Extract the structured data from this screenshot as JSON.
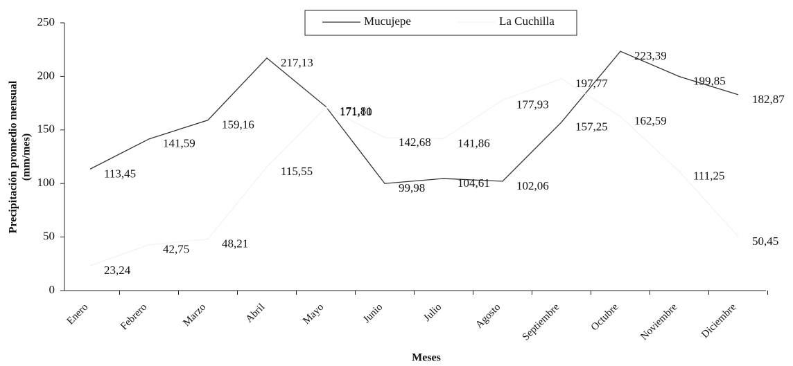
{
  "chart_data": {
    "type": "line",
    "xlabel": "Meses",
    "ylabel": [
      "Precipitación promedio mensual",
      "(mm/mes)"
    ],
    "categories": [
      "Enero",
      "Febrero",
      "Marzo",
      "Abril",
      "Mayo",
      "Junio",
      "Julio",
      "Agosto",
      "Septiembre",
      "Octubre",
      "Noviembre",
      "Diciembre"
    ],
    "series": [
      {
        "name": "Mucujepe",
        "color": "#333333",
        "values": [
          113.45,
          141.59,
          159.16,
          217.13,
          171.81,
          99.98,
          104.61,
          102.06,
          157.25,
          223.39,
          199.85,
          182.87
        ],
        "value_labels": [
          "113,45",
          "141,59",
          "159,16",
          "217,13",
          "171,81",
          "99,98",
          "104,61",
          "102,06",
          "157,25",
          "223,39",
          "199,85",
          "182,87"
        ]
      },
      {
        "name": "La Cuchilla",
        "color": "#f2f2f2",
        "values": [
          23.24,
          42.75,
          48.21,
          115.55,
          171.1,
          142.68,
          141.86,
          177.93,
          197.77,
          162.59,
          111.25,
          50.45
        ],
        "value_labels": [
          "23,24",
          "42,75",
          "48,21",
          "115,55",
          "171,10",
          "142,68",
          "141,86",
          "177,93",
          "197,77",
          "162,59",
          "111,25",
          "50,45"
        ]
      }
    ],
    "ylim": [
      0,
      250
    ],
    "yticks": [
      0,
      50,
      100,
      150,
      200,
      250
    ]
  }
}
